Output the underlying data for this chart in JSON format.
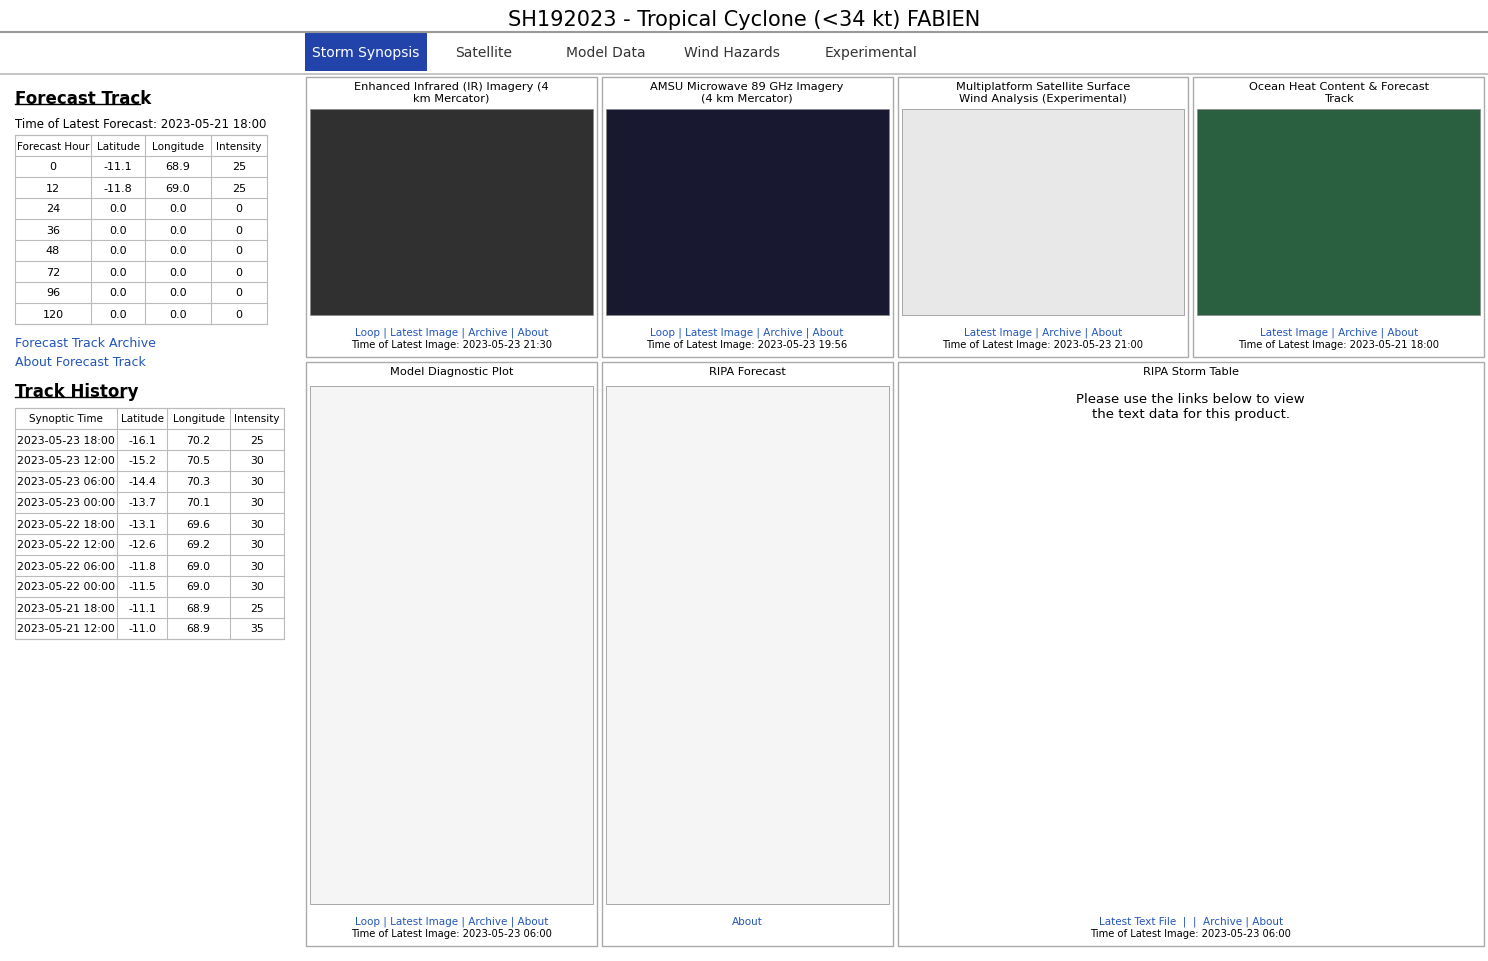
{
  "title": "SH192023 - Tropical Cyclone (<34 kt) FABIEN",
  "nav_tabs": [
    "Storm Synopsis",
    "Satellite",
    "Model Data",
    "Wind Hazards",
    "Experimental"
  ],
  "active_tab": 0,
  "active_tab_color": "#2244aa",
  "active_tab_text_color": "#ffffff",
  "inactive_tab_text_color": "#333333",
  "bg_color": "#ffffff",
  "forecast_track_title": "Forecast Track",
  "forecast_time_label": "Time of Latest Forecast: 2023-05-21 18:00",
  "forecast_table_headers": [
    "Forecast Hour",
    "Latitude",
    "Longitude",
    "Intensity"
  ],
  "forecast_table_data": [
    [
      "0",
      "-11.1",
      "68.9",
      "25"
    ],
    [
      "12",
      "-11.8",
      "69.0",
      "25"
    ],
    [
      "24",
      "0.0",
      "0.0",
      "0"
    ],
    [
      "36",
      "0.0",
      "0.0",
      "0"
    ],
    [
      "48",
      "0.0",
      "0.0",
      "0"
    ],
    [
      "72",
      "0.0",
      "0.0",
      "0"
    ],
    [
      "96",
      "0.0",
      "0.0",
      "0"
    ],
    [
      "120",
      "0.0",
      "0.0",
      "0"
    ]
  ],
  "forecast_links": [
    "Forecast Track Archive",
    "About Forecast Track"
  ],
  "track_history_title": "Track History",
  "track_history_headers": [
    "Synoptic Time",
    "Latitude",
    "Longitude",
    "Intensity"
  ],
  "track_history_data": [
    [
      "2023-05-23 18:00",
      "-16.1",
      "70.2",
      "25"
    ],
    [
      "2023-05-23 12:00",
      "-15.2",
      "70.5",
      "30"
    ],
    [
      "2023-05-23 06:00",
      "-14.4",
      "70.3",
      "30"
    ],
    [
      "2023-05-23 00:00",
      "-13.7",
      "70.1",
      "30"
    ],
    [
      "2023-05-22 18:00",
      "-13.1",
      "69.6",
      "30"
    ],
    [
      "2023-05-22 12:00",
      "-12.6",
      "69.2",
      "30"
    ],
    [
      "2023-05-22 06:00",
      "-11.8",
      "69.0",
      "30"
    ],
    [
      "2023-05-22 00:00",
      "-11.5",
      "69.0",
      "30"
    ],
    [
      "2023-05-21 18:00",
      "-11.1",
      "68.9",
      "25"
    ],
    [
      "2023-05-21 12:00",
      "-11.0",
      "68.9",
      "35"
    ]
  ],
  "panels_top": [
    {
      "title": "Enhanced Infrared (IR) Imagery (4\nkm Mercator)",
      "links_text": "Loop | Latest Image | Archive | About",
      "time_label": "Time of Latest Image: 2023-05-23 21:30",
      "img_color": "#303030"
    },
    {
      "title": "AMSU Microwave 89 GHz Imagery\n(4 km Mercator)",
      "links_text": "Loop | Latest Image | Archive | About",
      "time_label": "Time of Latest Image: 2023-05-23 19:56",
      "img_color": "#181830"
    },
    {
      "title": "Multiplatform Satellite Surface\nWind Analysis (Experimental)",
      "links_text": "Latest Image | Archive | About",
      "time_label": "Time of Latest Image: 2023-05-23 21:00",
      "img_color": "#e8e8e8"
    },
    {
      "title": "Ocean Heat Content & Forecast\nTrack",
      "links_text": "Latest Image | Archive | About",
      "time_label": "Time of Latest Image: 2023-05-21 18:00",
      "img_color": "#2a6040"
    }
  ],
  "panels_bottom": [
    {
      "title": "Model Diagnostic Plot",
      "links_text": "Loop | Latest Image | Archive | About",
      "time_label": "Time of Latest Image: 2023-05-23 06:00",
      "img_color": "#f5f5f5",
      "span": 1
    },
    {
      "title": "RIPA Forecast",
      "links_text": "About",
      "time_label": "",
      "img_color": "#f5f5f5",
      "span": 1
    },
    {
      "title": "RIPA Storm Table",
      "links_text": "Latest Text File  |  |  Archive | About",
      "time_label": "Time of Latest Image: 2023-05-23 06:00",
      "img_color": "#ffffff",
      "span": 2,
      "body_text": "Please use the links below to view\nthe text data for this product."
    }
  ],
  "link_color": "#2255bb",
  "table_border_color": "#bbbbbb",
  "panel_border_color": "#aaaaaa",
  "separator_color": "#aaaaaa"
}
